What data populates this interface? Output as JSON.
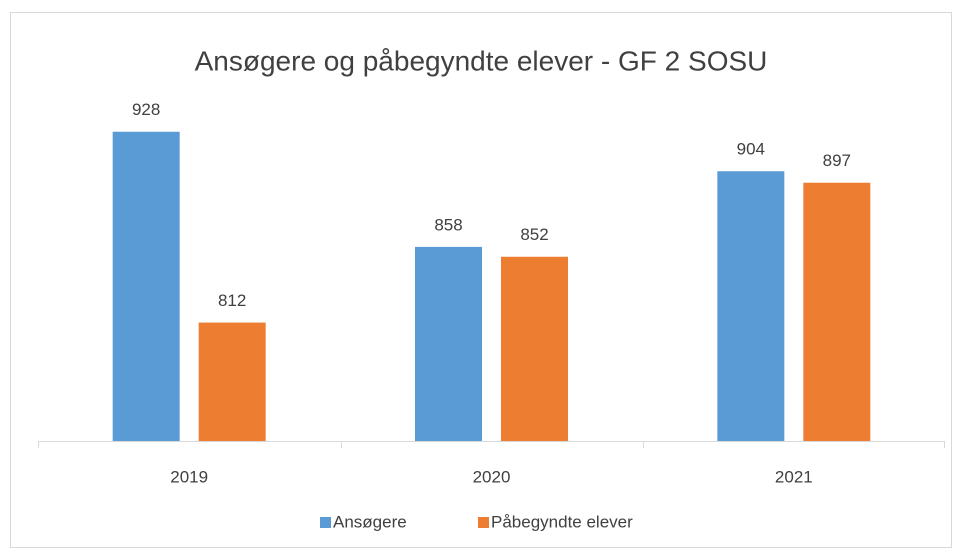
{
  "chart_data": {
    "type": "bar",
    "title": "Ansøgere og påbegyndte elever - GF 2 SOSU",
    "categories": [
      "2019",
      "2020",
      "2021"
    ],
    "series": [
      {
        "name": "Ansøgere",
        "color": "#5b9bd5",
        "values": [
          928,
          858,
          904
        ]
      },
      {
        "name": "Påbegyndte elever",
        "color": "#ed7d31",
        "values": [
          812,
          852,
          897
        ]
      }
    ],
    "ylim": [
      740,
      940
    ],
    "legend": "bottom"
  }
}
